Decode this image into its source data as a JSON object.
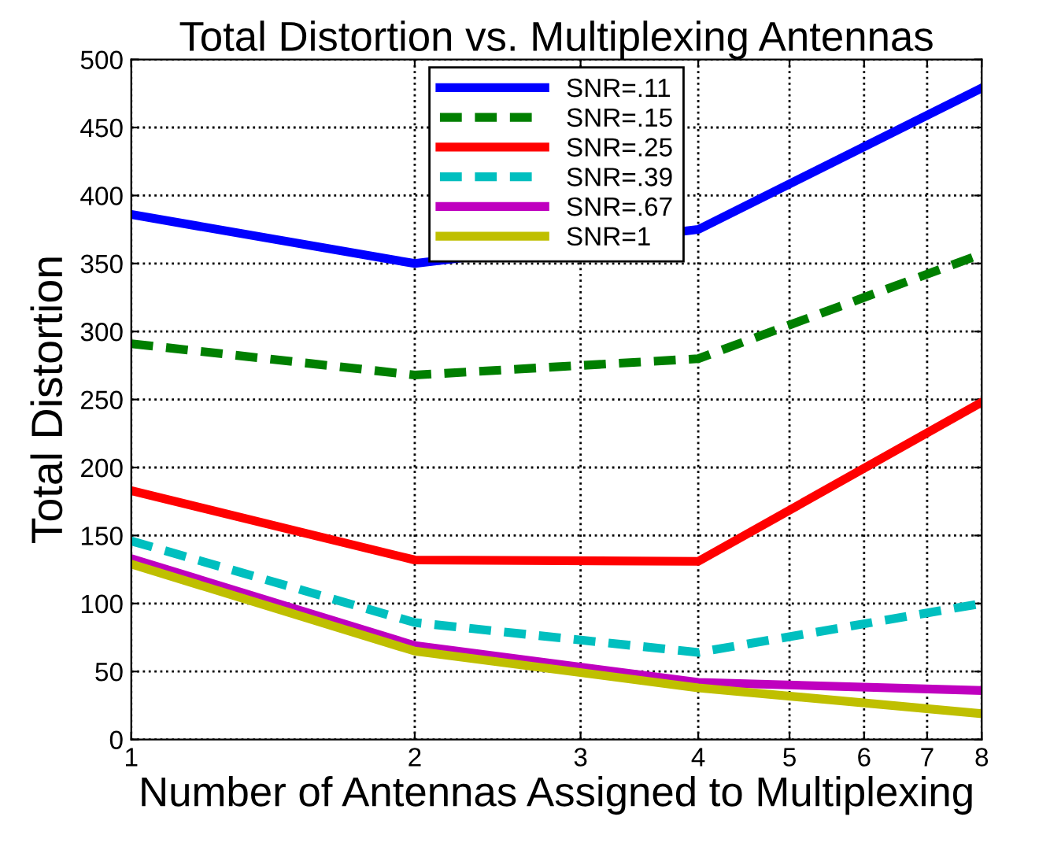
{
  "chart_data": {
    "type": "line",
    "title": "Total Distortion vs. Multiplexing Antennas",
    "xlabel": "Number of Antennas Assigned to Multiplexing",
    "ylabel": "Total Distortion",
    "x": [
      1,
      2,
      4,
      8
    ],
    "log": "x",
    "xlim": [
      1,
      8
    ],
    "xticks": [
      1,
      2,
      3,
      4,
      5,
      6,
      7,
      8
    ],
    "ylim": [
      0,
      500
    ],
    "yticks": [
      0,
      50,
      100,
      150,
      200,
      250,
      300,
      350,
      400,
      450,
      500
    ],
    "grid": true,
    "legend": "top",
    "series": [
      {
        "name": "SNR=.11",
        "color": "#0000ff",
        "values": [
          386,
          350,
          375,
          479
        ],
        "line_style": "solid"
      },
      {
        "name": "SNR=.15",
        "color": "#007f00",
        "values": [
          291,
          268,
          280,
          357
        ],
        "line_style": "dashed"
      },
      {
        "name": "SNR=.25",
        "color": "#ff0000",
        "values": [
          183,
          132,
          131,
          248
        ],
        "line_style": "solid"
      },
      {
        "name": "SNR=.39",
        "color": "#00bfbf",
        "values": [
          146,
          86,
          64,
          100
        ],
        "line_style": "dashed"
      },
      {
        "name": "SNR=.67",
        "color": "#bf00bf",
        "values": [
          133,
          69,
          42,
          36
        ],
        "line_style": "solid"
      },
      {
        "name": "SNR=1",
        "color": "#bfbf00",
        "values": [
          129,
          65,
          38,
          19
        ],
        "line_style": "solid"
      }
    ]
  }
}
